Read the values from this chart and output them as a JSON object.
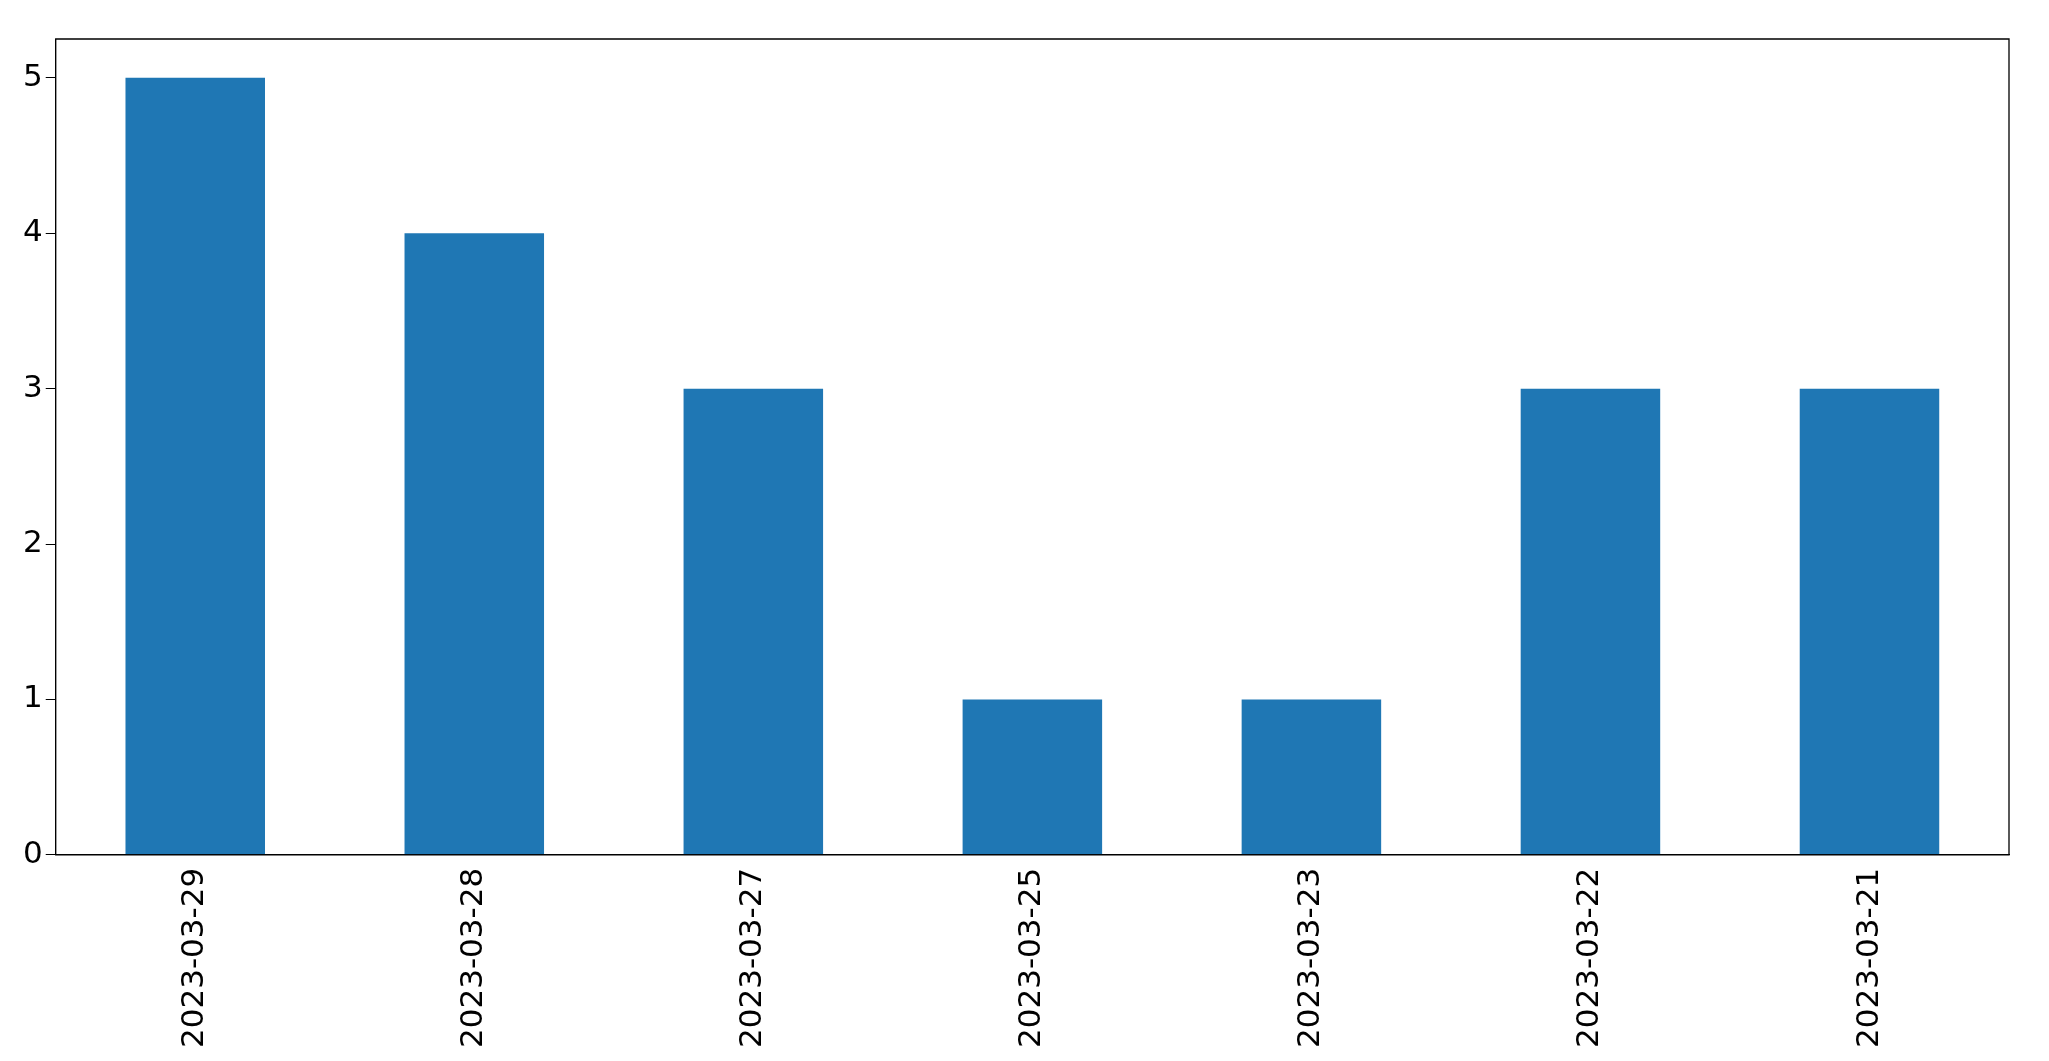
{
  "chart_data": {
    "type": "bar",
    "categories": [
      "2023-03-29",
      "2023-03-28",
      "2023-03-27",
      "2023-03-25",
      "2023-03-23",
      "2023-03-22",
      "2023-03-21"
    ],
    "values": [
      5,
      4,
      3,
      1,
      1,
      3,
      3
    ],
    "color": "#1f77b4",
    "ylim": [
      0,
      5.25
    ],
    "yticks": [
      0,
      1,
      2,
      3,
      4,
      5
    ],
    "grid": false,
    "legend": false
  }
}
